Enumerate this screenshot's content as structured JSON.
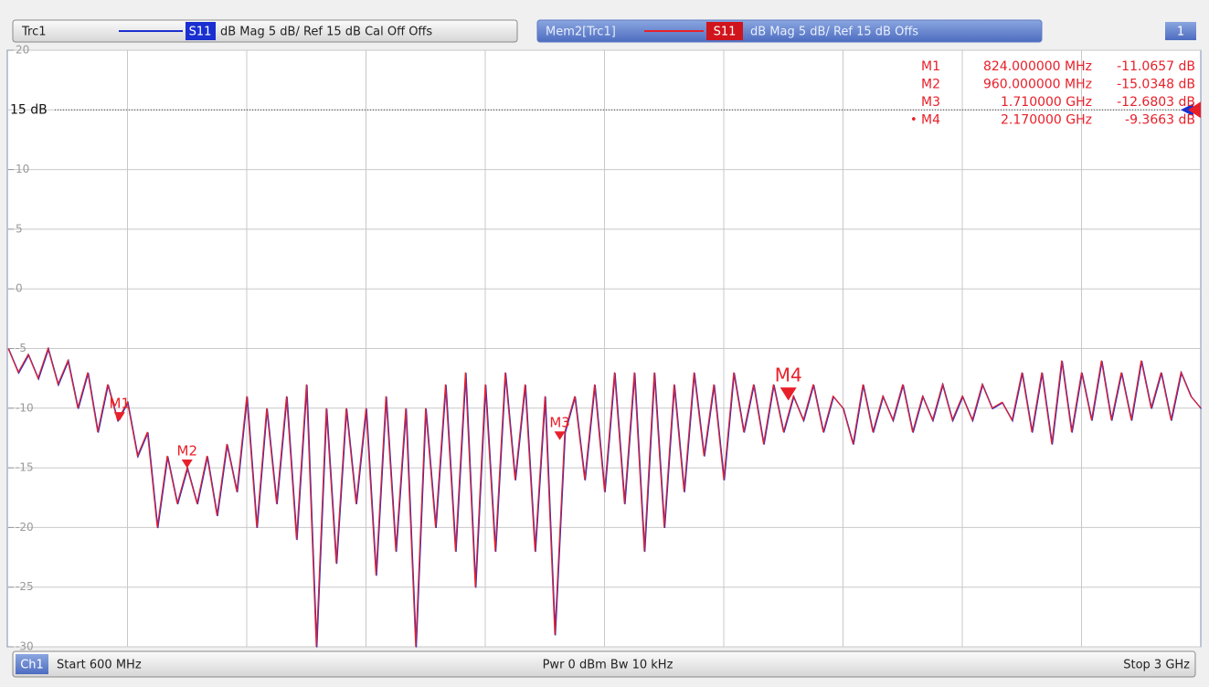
{
  "header": {
    "trace1": {
      "name": "Trc1",
      "param": "S11",
      "format": "dB Mag  5 dB/ Ref 15 dB  Cal Off Offs"
    },
    "trace2": {
      "name": "Mem2[Trc1]",
      "param": "S11",
      "format": "dB Mag  5 dB/ Ref 15 dB  Offs"
    },
    "window": "1"
  },
  "footer": {
    "channel": "Ch1",
    "start": "Start  600 MHz",
    "center": "Pwr  0 dBm  Bw  10 kHz",
    "stop": "Stop  3 GHz"
  },
  "chart_data": {
    "type": "line",
    "color": "#e8202a",
    "trace_color": "#1a2fd0",
    "xlim": [
      600,
      3000
    ],
    "xticks": [
      840,
      1080,
      1320,
      1560,
      1800,
      2040,
      2280,
      2520,
      2760
    ],
    "ylim": [
      -30,
      20
    ],
    "yticks": [
      20,
      {
        "value": 15,
        "label": "15 dB"
      },
      10,
      5,
      0,
      -5,
      -10,
      -15,
      -20,
      -25,
      -30
    ],
    "ref_level": 15,
    "grid": true,
    "x": [
      600,
      620,
      640,
      660,
      680,
      700,
      720,
      740,
      760,
      780,
      800,
      820,
      840,
      860,
      880,
      900,
      920,
      940,
      960,
      980,
      1000,
      1020,
      1040,
      1060,
      1080,
      1100,
      1120,
      1140,
      1160,
      1180,
      1200,
      1220,
      1240,
      1260,
      1280,
      1300,
      1320,
      1340,
      1360,
      1380,
      1400,
      1420,
      1440,
      1460,
      1480,
      1500,
      1520,
      1540,
      1560,
      1580,
      1600,
      1620,
      1640,
      1660,
      1680,
      1700,
      1720,
      1740,
      1760,
      1780,
      1800,
      1820,
      1840,
      1860,
      1880,
      1900,
      1920,
      1940,
      1960,
      1980,
      2000,
      2020,
      2040,
      2060,
      2080,
      2100,
      2120,
      2140,
      2160,
      2180,
      2200,
      2220,
      2240,
      2260,
      2280,
      2300,
      2320,
      2340,
      2360,
      2380,
      2400,
      2420,
      2440,
      2460,
      2480,
      2500,
      2520,
      2540,
      2560,
      2580,
      2600,
      2620,
      2640,
      2660,
      2680,
      2700,
      2720,
      2740,
      2760,
      2780,
      2800,
      2820,
      2840,
      2860,
      2880,
      2900,
      2920,
      2940,
      2960,
      2980,
      3000
    ],
    "values": [
      -5,
      -7,
      -5.5,
      -7.5,
      -5,
      -8,
      -6,
      -10,
      -7,
      -12,
      -8,
      -11,
      -9.5,
      -14,
      -12,
      -20,
      -14,
      -18,
      -15,
      -18,
      -14,
      -19,
      -13,
      -17,
      -9,
      -20,
      -10,
      -18,
      -9,
      -21,
      -8,
      -30,
      -10,
      -23,
      -10,
      -18,
      -10,
      -24,
      -9,
      -22,
      -10,
      -30,
      -10,
      -20,
      -8,
      -22,
      -7,
      -25,
      -8,
      -22,
      -7,
      -16,
      -8,
      -22,
      -9,
      -29,
      -12,
      -9,
      -16,
      -8,
      -17,
      -7,
      -18,
      -7,
      -22,
      -7,
      -20,
      -8,
      -17,
      -7,
      -14,
      -8,
      -16,
      -7,
      -12,
      -8,
      -13,
      -8,
      -12,
      -9,
      -11,
      -8,
      -12,
      -9,
      -10,
      -13,
      -8,
      -12,
      -9,
      -11,
      -8,
      -12,
      -9,
      -11,
      -8,
      -11,
      -9,
      -11,
      -8,
      -10,
      -9.5,
      -11,
      -7,
      -12,
      -7,
      -13,
      -6,
      -12,
      -7,
      -11,
      -6,
      -11,
      -7,
      -11,
      -6,
      -10,
      -7,
      -11,
      -7,
      -9,
      -10
    ],
    "markers": [
      {
        "name": "M1",
        "stimulus": "824.000000 MHz",
        "response": "-11.0657 dB",
        "x": 824,
        "y": -11.0657
      },
      {
        "name": "M2",
        "stimulus": "960.000000 MHz",
        "response": "-15.0348 dB",
        "x": 960,
        "y": -15.0348
      },
      {
        "name": "M3",
        "stimulus": "1.710000 GHz",
        "response": "-12.6803 dB",
        "x": 1710,
        "y": -12.6803
      },
      {
        "name": "M4",
        "stimulus": "2.170000 GHz",
        "response": "-9.3663 dB",
        "x": 2170,
        "y": -9.3663,
        "indicator": "•"
      }
    ]
  }
}
